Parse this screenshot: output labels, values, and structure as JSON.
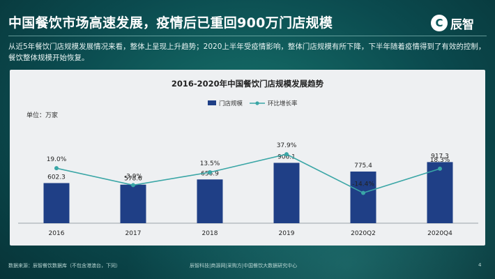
{
  "header": {
    "title": "中国餐饮市场高速发展，疫情后已重回900万门店规模",
    "logo_text": "辰智",
    "logo_mark": "C"
  },
  "description": "从近5年餐饮门店规模发展情况来看，整体上呈现上升趋势；2020上半年受疫情影响，整体门店规模有所下降，下半年随着疫情得到了有效的控制，餐饮整体规模开始恢复。",
  "chart_data": {
    "type": "bar",
    "title": "2016-2020年中国餐饮门店规模发展趋势",
    "unit_label": "单位：万家",
    "categories": [
      "2016",
      "2017",
      "2018",
      "2019",
      "2020Q2",
      "2020Q4"
    ],
    "series": [
      {
        "name": "门店规模",
        "type": "bar",
        "values": [
          602.3,
          578.6,
          656.9,
          906.1,
          775.4,
          917.3
        ],
        "labels": [
          "602.3",
          "578.6",
          "656.9",
          "906.1",
          "775.4",
          "917.3"
        ]
      },
      {
        "name": "环比增长率",
        "type": "line",
        "values": [
          19.0,
          -3.9,
          13.5,
          37.9,
          -14.4,
          18.3
        ],
        "labels": [
          "19.0%",
          "-3.9%",
          "13.5%",
          "37.9%",
          "-14.4%",
          "18.3%"
        ]
      }
    ],
    "legend_position": "top-center",
    "grid": false,
    "colors": {
      "bar": "#1f3f86",
      "line": "#3aa6a6"
    }
  },
  "footer": {
    "source": "数据来源：辰智餐饮数据库（不包含港澳台，下同）",
    "credits": "辰智科技|商源网|采购方|中国餐饮大数据研究中心",
    "page_number": "4"
  }
}
